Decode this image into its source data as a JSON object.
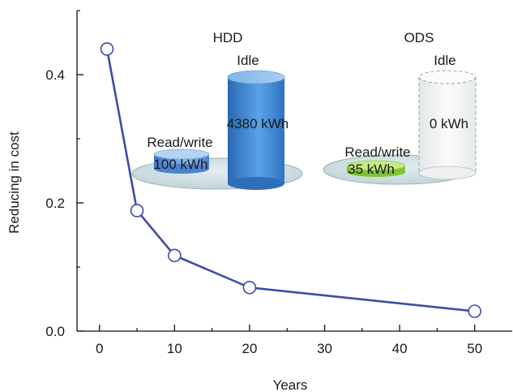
{
  "chart_data": {
    "type": "line",
    "title": "",
    "xlabel": "Years",
    "ylabel": "Reducing in cost",
    "xlim": [
      -3,
      55
    ],
    "ylim": [
      0,
      0.5
    ],
    "xticks": [
      0,
      10,
      20,
      30,
      40,
      50
    ],
    "xtick_labels": [
      "0",
      "10",
      "20",
      "30",
      "40",
      "50"
    ],
    "yticks": [
      0.0,
      0.2,
      0.4
    ],
    "ytick_labels": [
      "0.0",
      "0.2",
      "0.4"
    ],
    "grid": false,
    "series": [
      {
        "color": "#3f4aa8",
        "marker": "open-circle",
        "x": [
          1,
          5,
          10,
          20,
          50
        ],
        "y": [
          0.44,
          0.188,
          0.118,
          0.068,
          0.031
        ]
      }
    ]
  },
  "inset": {
    "hdd": {
      "title": "HDD",
      "idle_label": "Idle",
      "idle_value": "4380 kWh",
      "rw_label": "Read/write",
      "rw_value": "100 kWh",
      "idle_color": "#3b86d0",
      "rw_color": "#5a93d8"
    },
    "ods": {
      "title": "ODS",
      "idle_label": "Idle",
      "idle_value": "0 kWh",
      "rw_label": "Read/write",
      "rw_value": "35 kWh",
      "idle_color": "#f2f4f4",
      "rw_color": "#8ccf3a"
    },
    "platform_color": "#cfdee2"
  }
}
